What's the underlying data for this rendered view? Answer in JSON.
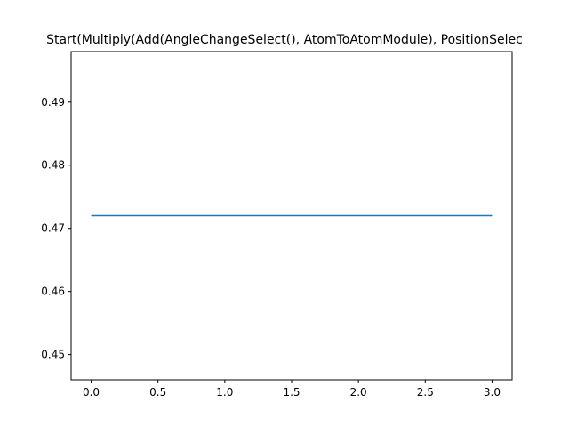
{
  "chart_data": {
    "type": "line",
    "title": "Start(Multiply(Add(AngleChangeSelect(), AtomToAtomModule), PositionSelec",
    "xlabel": "",
    "ylabel": "",
    "xlim": [
      -0.15,
      3.15
    ],
    "ylim": [
      0.446,
      0.498
    ],
    "x_ticks": [
      0.0,
      0.5,
      1.0,
      1.5,
      2.0,
      2.5,
      3.0
    ],
    "x_tick_labels": [
      "0.0",
      "0.5",
      "1.0",
      "1.5",
      "2.0",
      "2.5",
      "3.0"
    ],
    "y_ticks": [
      0.45,
      0.46,
      0.47,
      0.48,
      0.49
    ],
    "y_tick_labels": [
      "0.45",
      "0.46",
      "0.47",
      "0.48",
      "0.49"
    ],
    "grid": false,
    "legend": "none",
    "series": [
      {
        "x": [
          0,
          1,
          2,
          3
        ],
        "y": [
          0.472,
          0.472,
          0.472,
          0.472
        ],
        "color": "#1f77b4"
      }
    ]
  }
}
